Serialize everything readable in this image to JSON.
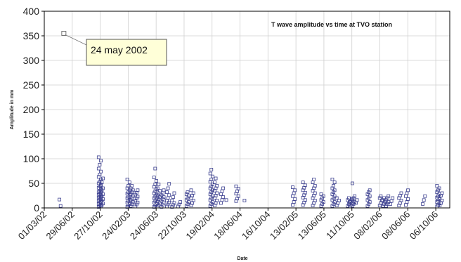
{
  "chart_data": {
    "type": "scatter",
    "title": "T wave amplitude vs time at TVO station",
    "xlabel": "Date",
    "ylabel": "Amplitude in mm",
    "ylim": [
      0,
      400
    ],
    "yticks": [
      0,
      50,
      100,
      150,
      200,
      250,
      300,
      350,
      400
    ],
    "xlim": [
      "2002-03-01",
      "2006-12-05"
    ],
    "xticks": [
      {
        "date": "2002-03-01",
        "label": "01/03/02"
      },
      {
        "date": "2002-06-29",
        "label": "29/06/02"
      },
      {
        "date": "2002-10-27",
        "label": "27/10/02"
      },
      {
        "date": "2003-02-24",
        "label": "24/02/03"
      },
      {
        "date": "2003-06-24",
        "label": "24/06/03"
      },
      {
        "date": "2003-10-22",
        "label": "22/10/03"
      },
      {
        "date": "2004-02-19",
        "label": "19/02/04"
      },
      {
        "date": "2004-06-18",
        "label": "18/06/04"
      },
      {
        "date": "2004-10-16",
        "label": "16/10/04"
      },
      {
        "date": "2005-02-13",
        "label": "13/02/05"
      },
      {
        "date": "2005-06-13",
        "label": "13/06/05"
      },
      {
        "date": "2005-10-11",
        "label": "11/10/05"
      },
      {
        "date": "2006-02-08",
        "label": "08/02/06"
      },
      {
        "date": "2006-06-08",
        "label": "08/06/06"
      },
      {
        "date": "2006-10-06",
        "label": "06/10/06"
      }
    ],
    "grid": true,
    "marker_color": "#3b3f8f",
    "highlight": {
      "date": "2002-05-24",
      "value": 355,
      "label": "24 may 2002"
    },
    "clusters": [
      {
        "date": "2002-05-10",
        "values": [
          17,
          4
        ]
      },
      {
        "date": "2002-10-25",
        "values": [
          2,
          4,
          6,
          8,
          10,
          12,
          14,
          16,
          18,
          20,
          22,
          24,
          26,
          28,
          30,
          32,
          35,
          38,
          41,
          44,
          47,
          50,
          54,
          58,
          63,
          68,
          74,
          80,
          88,
          96,
          103
        ]
      },
      {
        "date": "2002-11-03",
        "values": [
          3,
          6,
          9,
          12,
          15,
          18,
          21,
          24,
          28,
          32,
          36,
          40,
          45,
          52,
          60
        ]
      },
      {
        "date": "2003-02-25",
        "values": [
          2,
          5,
          8,
          11,
          14,
          17,
          20,
          23,
          26,
          29,
          32,
          36,
          40,
          45,
          52,
          58
        ]
      },
      {
        "date": "2003-03-12",
        "values": [
          4,
          8,
          12,
          16,
          20,
          24,
          28,
          32,
          36,
          40,
          45
        ]
      },
      {
        "date": "2003-04-01",
        "values": [
          3,
          7,
          11,
          15,
          19,
          23,
          27,
          31,
          36
        ]
      },
      {
        "date": "2003-06-20",
        "values": [
          2,
          5,
          8,
          11,
          14,
          17,
          20,
          23,
          26,
          30,
          34,
          38,
          43,
          48,
          55,
          62,
          80
        ]
      },
      {
        "date": "2003-07-05",
        "values": [
          3,
          6,
          10,
          14,
          18,
          22,
          26,
          30,
          35,
          40,
          48
        ]
      },
      {
        "date": "2003-07-22",
        "values": [
          2,
          6,
          10,
          14,
          18,
          22,
          26,
          30,
          36
        ]
      },
      {
        "date": "2003-08-14",
        "values": [
          3,
          7,
          11,
          15,
          20,
          26,
          32,
          40,
          49
        ]
      },
      {
        "date": "2003-09-05",
        "values": [
          2,
          6,
          10,
          15,
          22,
          30
        ]
      },
      {
        "date": "2003-10-01",
        "values": [
          3,
          7,
          12
        ]
      },
      {
        "date": "2003-11-06",
        "values": [
          4,
          8,
          12,
          16,
          20,
          24,
          28,
          32
        ]
      },
      {
        "date": "2003-11-26",
        "values": [
          5,
          10,
          15,
          20,
          25,
          30,
          36
        ]
      },
      {
        "date": "2004-02-16",
        "values": [
          4,
          8,
          12,
          16,
          20,
          24,
          28,
          32,
          36,
          40,
          44,
          48,
          53,
          58,
          64,
          70,
          78
        ]
      },
      {
        "date": "2004-03-06",
        "values": [
          5,
          10,
          15,
          20,
          25,
          30,
          35,
          40,
          45,
          52,
          60
        ]
      },
      {
        "date": "2004-04-02",
        "values": [
          10,
          16,
          22,
          28,
          34,
          40
        ]
      },
      {
        "date": "2004-04-25",
        "values": [
          16
        ]
      },
      {
        "date": "2004-06-06",
        "values": [
          14,
          19,
          24,
          29,
          34,
          39,
          44
        ]
      },
      {
        "date": "2004-07-12",
        "values": [
          15
        ]
      },
      {
        "date": "2005-02-04",
        "values": [
          6,
          12,
          18,
          24,
          30,
          36,
          42
        ]
      },
      {
        "date": "2005-03-20",
        "values": [
          6,
          11,
          16,
          21,
          26,
          31,
          36,
          41,
          46,
          52
        ]
      },
      {
        "date": "2005-05-01",
        "values": [
          5,
          10,
          15,
          20,
          25,
          30,
          35,
          40,
          45,
          52,
          58
        ]
      },
      {
        "date": "2005-06-06",
        "values": [
          4,
          8,
          12,
          16,
          20,
          24,
          28
        ]
      },
      {
        "date": "2005-07-24",
        "values": [
          4,
          8,
          12,
          16,
          20,
          24,
          28,
          32,
          36,
          40,
          45,
          52,
          58
        ]
      },
      {
        "date": "2005-08-12",
        "values": [
          5,
          10,
          15,
          20
        ]
      },
      {
        "date": "2005-09-28",
        "values": [
          4,
          8,
          12,
          16,
          20
        ]
      },
      {
        "date": "2005-10-06",
        "values": [
          3,
          6,
          9,
          12,
          15,
          18
        ]
      },
      {
        "date": "2005-10-18",
        "values": [
          4,
          8,
          12,
          16,
          20,
          24,
          50
        ]
      },
      {
        "date": "2005-11-02",
        "values": [
          10,
          16
        ]
      },
      {
        "date": "2005-12-22",
        "values": [
          4,
          8,
          12,
          16,
          20,
          24,
          28,
          32,
          36
        ]
      },
      {
        "date": "2006-02-12",
        "values": [
          5,
          10,
          15,
          20,
          24
        ]
      },
      {
        "date": "2006-02-26",
        "values": [
          4,
          8,
          12,
          16,
          20
        ]
      },
      {
        "date": "2006-03-12",
        "values": [
          4,
          8,
          12,
          16,
          20,
          24
        ]
      },
      {
        "date": "2006-03-30",
        "values": [
          8,
          14,
          20
        ]
      },
      {
        "date": "2006-05-06",
        "values": [
          5,
          10,
          15,
          20,
          25,
          30
        ]
      },
      {
        "date": "2006-06-04",
        "values": [
          6,
          12,
          18,
          24,
          30,
          36
        ]
      },
      {
        "date": "2006-08-16",
        "values": [
          8,
          16,
          24
        ]
      },
      {
        "date": "2006-10-16",
        "values": [
          3,
          6,
          9,
          12,
          15,
          18,
          21,
          24,
          28,
          32,
          36,
          40,
          45
        ]
      },
      {
        "date": "2006-10-28",
        "values": [
          5,
          10,
          15,
          20,
          25,
          30
        ]
      }
    ]
  }
}
